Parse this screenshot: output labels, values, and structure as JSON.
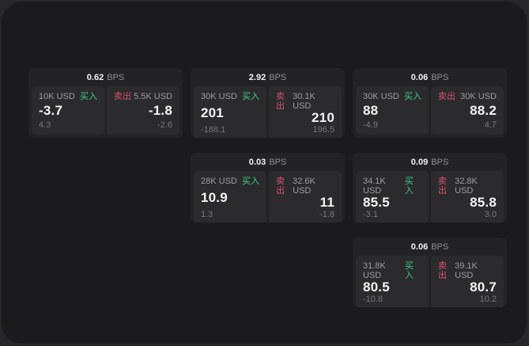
{
  "colors": {
    "buy_green": "#3BCD84",
    "sell_red": "#D8506B",
    "canvas_bg": "#1B1B1E",
    "card_bg": "#232327",
    "panel_bg": "#2B2B2E"
  },
  "labels": {
    "bps_unit": "BPS",
    "buy": "买入",
    "sell": "卖出"
  },
  "cards": [
    {
      "bps": "0.62",
      "buy": {
        "amount": "10K USD",
        "price": "-3.7",
        "delta": "4.3"
      },
      "sell": {
        "amount": "5.5K USD",
        "price": "-1.8",
        "delta": "-2.6"
      }
    },
    {
      "bps": "2.92",
      "buy": {
        "amount": "30K USD",
        "price": "201",
        "delta": "-188.1"
      },
      "sell": {
        "amount": "30.1K USD",
        "price": "210",
        "delta": "196.5"
      }
    },
    {
      "bps": "0.06",
      "buy": {
        "amount": "30K USD",
        "price": "88",
        "delta": "-4.9"
      },
      "sell": {
        "amount": "30K USD",
        "price": "88.2",
        "delta": "4.7"
      }
    },
    {
      "bps": "0.03",
      "buy": {
        "amount": "28K USD",
        "price": "10.9",
        "delta": "1.3"
      },
      "sell": {
        "amount": "32.6K USD",
        "price": "11",
        "delta": "-1.8"
      }
    },
    {
      "bps": "0.09",
      "buy": {
        "amount": "34.1K USD",
        "price": "85.5",
        "delta": "-3.1"
      },
      "sell": {
        "amount": "32.8K USD",
        "price": "85.8",
        "delta": "3.0"
      }
    },
    {
      "bps": "0.06",
      "buy": {
        "amount": "31.8K USD",
        "price": "80.5",
        "delta": "-10.8"
      },
      "sell": {
        "amount": "39.1K USD",
        "price": "80.7",
        "delta": "10.2"
      }
    }
  ]
}
